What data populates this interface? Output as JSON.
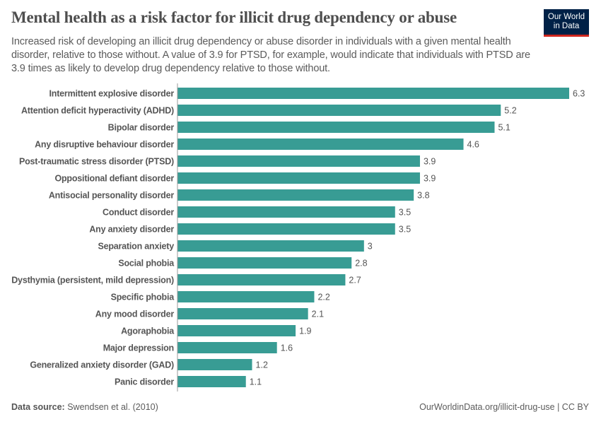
{
  "title": "Mental health as a risk factor for illicit drug dependency or abuse",
  "subtitle": "Increased risk of developing an illicit drug dependency or abuse disorder in individuals with a given mental health disorder, relative to those without. A value of 3.9 for PTSD, for example, would indicate that individuals with PTSD are 3.9 times as likely to develop drug dependency relative to those without.",
  "logo": {
    "line1": "Our World",
    "line2": "in Data",
    "bg": "#002147",
    "accent": "#ce261e"
  },
  "footer": {
    "source_label": "Data source:",
    "source": "Swendsen et al. (2010)",
    "url_license": "OurWorldinData.org/illicit-drug-use | CC BY"
  },
  "chart_data": {
    "type": "bar",
    "orientation": "horizontal",
    "bar_color": "#389c94",
    "categories": [
      "Intermittent explosive disorder",
      "Attention deficit hyperactivity (ADHD)",
      "Bipolar disorder",
      "Any disruptive behaviour disorder",
      "Post-traumatic stress disorder (PTSD)",
      "Oppositional defiant disorder",
      "Antisocial personality disorder",
      "Conduct disorder",
      "Any anxiety disorder",
      "Separation anxiety",
      "Social phobia",
      "Dysthymia (persistent, mild depression)",
      "Specific phobia",
      "Any mood disorder",
      "Agoraphobia",
      "Major depression",
      "Generalized anxiety disorder (GAD)",
      "Panic disorder"
    ],
    "values": [
      6.3,
      5.2,
      5.1,
      4.6,
      3.9,
      3.9,
      3.8,
      3.5,
      3.5,
      3,
      2.8,
      2.7,
      2.2,
      2.1,
      1.9,
      1.6,
      1.2,
      1.1
    ],
    "data_labels": [
      "6.3",
      "5.2",
      "5.1",
      "4.6",
      "3.9",
      "3.9",
      "3.8",
      "3.5",
      "3.5",
      "3",
      "2.8",
      "2.7",
      "2.2",
      "2.1",
      "1.9",
      "1.6",
      "1.2",
      "1.1"
    ],
    "xlim": [
      0,
      6.3
    ]
  }
}
